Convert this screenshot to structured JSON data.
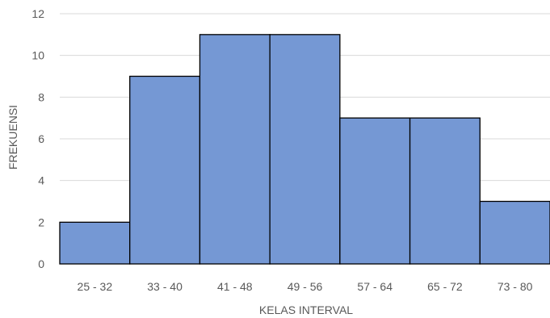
{
  "chart_data": {
    "type": "bar",
    "subtype": "histogram",
    "categories": [
      "25 - 32",
      "33 - 40",
      "41 - 48",
      "49 - 56",
      "57 - 64",
      "65 - 72",
      "73 - 80"
    ],
    "values": [
      2,
      9,
      11,
      11,
      7,
      7,
      3
    ],
    "xlabel": "KELAS INTERVAL",
    "ylabel": "FREKUENSI",
    "ylim": [
      0,
      12
    ],
    "yticks": [
      0,
      2,
      4,
      6,
      8,
      10,
      12
    ],
    "ytick_labels": [
      "0",
      "2",
      "4",
      "6",
      "8",
      "10",
      "12"
    ],
    "grid": true,
    "legend": false,
    "colors": {
      "bar_fill": "#7598d4",
      "bar_edge": "#000000",
      "grid": "#d9d9d9",
      "text": "#595959"
    }
  }
}
